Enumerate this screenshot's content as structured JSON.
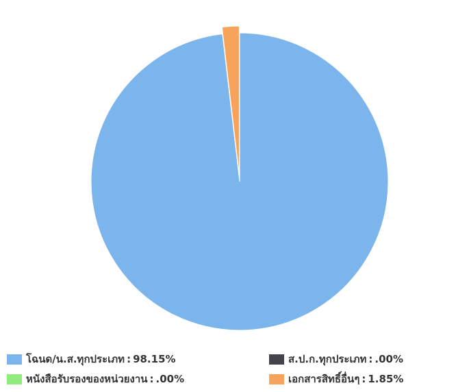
{
  "chart_data": {
    "type": "pie",
    "title": "",
    "legend_placement": "bottom",
    "slices": [
      {
        "label": "โฉนด/น.ส.ทุกประเภท",
        "value": 98.15,
        "value_label": "98.15%",
        "color": "#7cb5ec"
      },
      {
        "label": "ส.ป.ก.ทุกประเภท",
        "value": 0,
        "value_label": ".00%",
        "color": "#434348"
      },
      {
        "label": "หนังสือรับรองของหน่วยงาน",
        "value": 0,
        "value_label": ".00%",
        "color": "#90ed7d"
      },
      {
        "label": "เอกสารสิทธิ์อื่นๆ",
        "value": 1.85,
        "value_label": "1.85%",
        "color": "#f7a35c",
        "sliced": true
      }
    ],
    "legend_separator": ":"
  }
}
